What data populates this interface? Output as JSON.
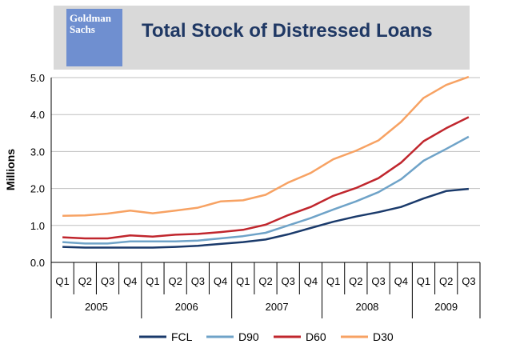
{
  "header": {
    "logo_line1": "Goldman",
    "logo_line2": "Sachs",
    "title": "Total Stock of Distressed Loans"
  },
  "chart_data": {
    "type": "line",
    "title": "Total Stock of Distressed Loans",
    "ylabel": "Millions",
    "xlabel": "",
    "ylim": [
      0,
      5
    ],
    "yticks": [
      "0.0",
      "1.0",
      "2.0",
      "3.0",
      "4.0",
      "5.0"
    ],
    "quarters": [
      "Q1",
      "Q2",
      "Q3",
      "Q4",
      "Q1",
      "Q2",
      "Q3",
      "Q4",
      "Q1",
      "Q2",
      "Q3",
      "Q4",
      "Q1",
      "Q2",
      "Q3",
      "Q4",
      "Q1",
      "Q2",
      "Q3"
    ],
    "years": [
      "2005",
      "2006",
      "2007",
      "2008",
      "2009"
    ],
    "grid": true,
    "legend": "bottom",
    "series": [
      {
        "name": "FCL",
        "color": "#1a3a6b",
        "values": [
          0.42,
          0.4,
          0.4,
          0.4,
          0.4,
          0.42,
          0.45,
          0.5,
          0.55,
          0.62,
          0.76,
          0.93,
          1.1,
          1.24,
          1.36,
          1.5,
          1.73,
          1.93,
          1.99
        ]
      },
      {
        "name": "D90",
        "color": "#6fa3c8",
        "values": [
          0.55,
          0.51,
          0.51,
          0.57,
          0.57,
          0.57,
          0.59,
          0.65,
          0.71,
          0.8,
          1.0,
          1.2,
          1.43,
          1.65,
          1.9,
          2.25,
          2.75,
          3.07,
          3.4
        ]
      },
      {
        "name": "D60",
        "color": "#c0262d",
        "values": [
          0.68,
          0.65,
          0.65,
          0.73,
          0.7,
          0.75,
          0.77,
          0.82,
          0.88,
          1.02,
          1.28,
          1.5,
          1.8,
          2.01,
          2.28,
          2.7,
          3.28,
          3.63,
          3.93
        ]
      },
      {
        "name": "D30",
        "color": "#f7a263",
        "values": [
          1.26,
          1.27,
          1.32,
          1.4,
          1.33,
          1.4,
          1.48,
          1.65,
          1.68,
          1.83,
          2.16,
          2.42,
          2.79,
          3.02,
          3.3,
          3.8,
          4.45,
          4.8,
          5.02
        ]
      }
    ]
  }
}
